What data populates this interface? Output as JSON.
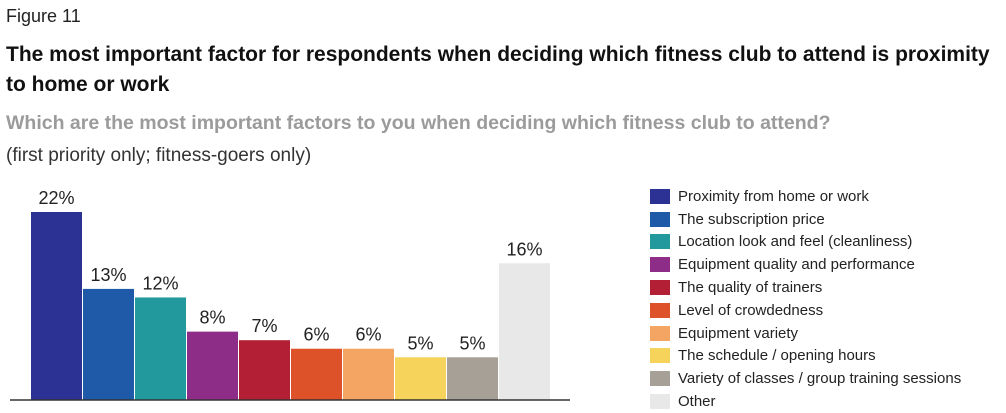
{
  "figure_label": "Figure 11",
  "headline": "The most important factor for respondents when deciding which fitness club to attend is proximity to home or work",
  "subtitle": "Which are the most important factors to you when deciding which fitness club to attend?",
  "note": "(first priority only; fitness-goers only)",
  "chart_data": {
    "type": "bar",
    "title": "Which are the most important factors to you when deciding which fitness club to attend?",
    "value_suffix": "%",
    "ylim": [
      0,
      22
    ],
    "grid": false,
    "legend_position": "right",
    "categories": [
      "Proximity from home or work",
      "The subscription price",
      "Location look and feel (cleanliness)",
      "Equipment quality and performance",
      "The quality of trainers",
      "Level of crowdedness",
      "Equipment variety",
      "The schedule / opening hours",
      "Variety of classes / group training sessions",
      "Other"
    ],
    "values": [
      22,
      13,
      12,
      8,
      7,
      6,
      6,
      5,
      5,
      16
    ],
    "colors": [
      "#2b3293",
      "#1e5aa8",
      "#22999d",
      "#8e2d87",
      "#b31f35",
      "#dd5228",
      "#f4a463",
      "#f6d35a",
      "#a7a096",
      "#e8e8e8"
    ]
  }
}
